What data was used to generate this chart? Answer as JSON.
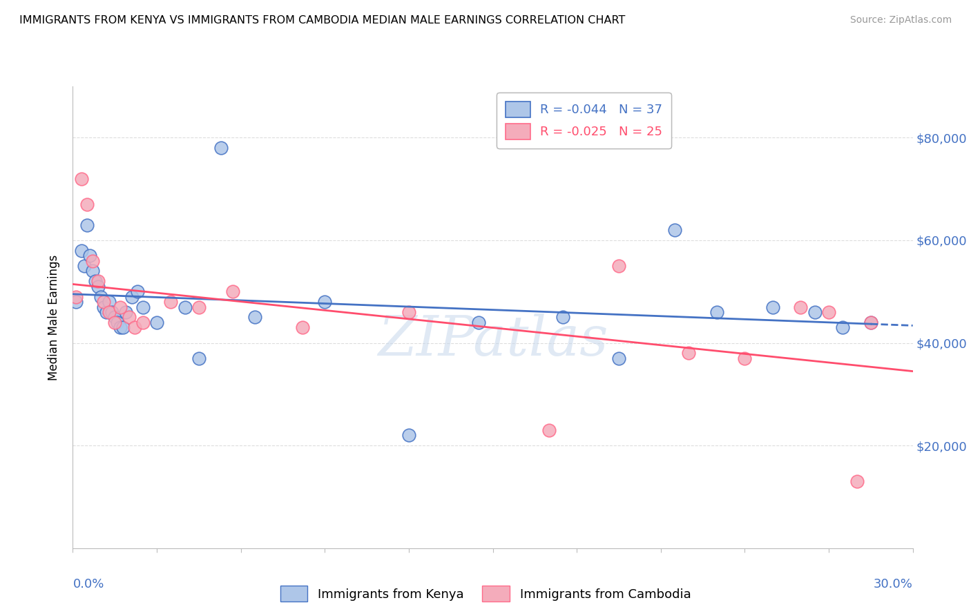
{
  "title": "IMMIGRANTS FROM KENYA VS IMMIGRANTS FROM CAMBODIA MEDIAN MALE EARNINGS CORRELATION CHART",
  "source": "Source: ZipAtlas.com",
  "ylabel": "Median Male Earnings",
  "xmin": 0.0,
  "xmax": 0.3,
  "ymin": 0,
  "ymax": 90000,
  "yticks": [
    20000,
    40000,
    60000,
    80000
  ],
  "ytick_labels": [
    "$20,000",
    "$40,000",
    "$60,000",
    "$80,000"
  ],
  "kenya_R": -0.044,
  "kenya_N": 37,
  "cambodia_R": -0.025,
  "cambodia_N": 25,
  "kenya_color": "#AEC6E8",
  "cambodia_color": "#F4ACBB",
  "kenya_edge_color": "#4472C4",
  "cambodia_edge_color": "#FF6B8A",
  "kenya_line_color": "#4472C4",
  "cambodia_line_color": "#FF4D6D",
  "right_axis_color": "#4472C4",
  "legend_label_kenya": "Immigrants from Kenya",
  "legend_label_cambodia": "Immigrants from Cambodia",
  "kenya_scatter_x": [
    0.001,
    0.003,
    0.004,
    0.005,
    0.006,
    0.007,
    0.008,
    0.009,
    0.01,
    0.011,
    0.012,
    0.013,
    0.014,
    0.015,
    0.016,
    0.017,
    0.018,
    0.019,
    0.021,
    0.023,
    0.025,
    0.03,
    0.04,
    0.045,
    0.053,
    0.065,
    0.09,
    0.12,
    0.145,
    0.175,
    0.195,
    0.215,
    0.23,
    0.25,
    0.265,
    0.275,
    0.285
  ],
  "kenya_scatter_y": [
    48000,
    58000,
    55000,
    63000,
    57000,
    54000,
    52000,
    51000,
    49000,
    47000,
    46000,
    48000,
    46000,
    45000,
    44000,
    43000,
    43000,
    46000,
    49000,
    50000,
    47000,
    44000,
    47000,
    37000,
    78000,
    45000,
    48000,
    22000,
    44000,
    45000,
    37000,
    62000,
    46000,
    47000,
    46000,
    43000,
    44000
  ],
  "cambodia_scatter_x": [
    0.001,
    0.003,
    0.005,
    0.007,
    0.009,
    0.011,
    0.013,
    0.015,
    0.017,
    0.02,
    0.022,
    0.025,
    0.035,
    0.045,
    0.057,
    0.082,
    0.12,
    0.17,
    0.195,
    0.22,
    0.24,
    0.26,
    0.27,
    0.28,
    0.285
  ],
  "cambodia_scatter_y": [
    49000,
    72000,
    67000,
    56000,
    52000,
    48000,
    46000,
    44000,
    47000,
    45000,
    43000,
    44000,
    48000,
    47000,
    50000,
    43000,
    46000,
    23000,
    55000,
    38000,
    37000,
    47000,
    46000,
    13000,
    44000
  ],
  "watermark_text": "ZIPatlas",
  "background_color": "#FFFFFF",
  "grid_color": "#DDDDDD"
}
